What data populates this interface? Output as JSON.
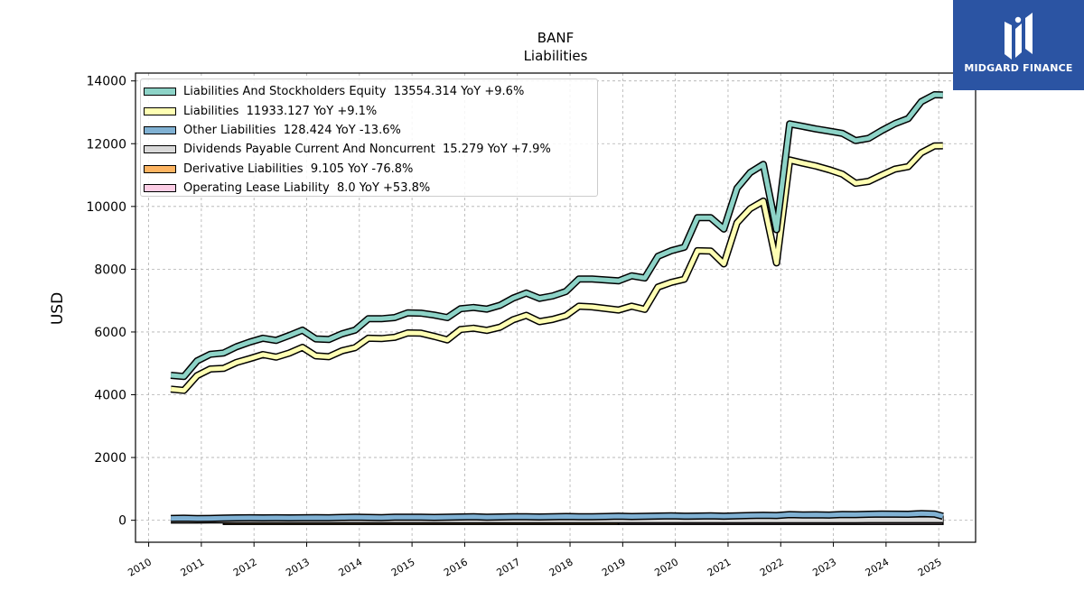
{
  "logo": {
    "text": "MIDGARD FINANCE"
  },
  "chart_data": {
    "type": "line",
    "title": "BANF",
    "subtitle": "Liabilities",
    "ylabel": "USD",
    "xlabel": "",
    "xlim": [
      2009.75,
      2025.7
    ],
    "ylim": [
      -700,
      14250
    ],
    "yticks": [
      0,
      2000,
      4000,
      6000,
      8000,
      10000,
      12000,
      14000
    ],
    "ytick_labels": [
      "0",
      "2000",
      "4000",
      "6000",
      "8000",
      "10000",
      "12000",
      "14000"
    ],
    "xticks": [
      2010,
      2011,
      2012,
      2013,
      2014,
      2015,
      2016,
      2017,
      2018,
      2019,
      2020,
      2021,
      2022,
      2023,
      2024,
      2025
    ],
    "xtick_labels": [
      "2010",
      "2011",
      "2012",
      "2013",
      "2014",
      "2015",
      "2016",
      "2017",
      "2018",
      "2019",
      "2020",
      "2021",
      "2022",
      "2023",
      "2024",
      "2025"
    ],
    "grid": true,
    "legend_position": "top-left",
    "x": [
      2010.42,
      2010.67,
      2010.92,
      2011.17,
      2011.42,
      2011.67,
      2011.92,
      2012.17,
      2012.42,
      2012.67,
      2012.92,
      2013.17,
      2013.42,
      2013.67,
      2013.92,
      2014.17,
      2014.42,
      2014.67,
      2014.92,
      2015.17,
      2015.42,
      2015.67,
      2015.92,
      2016.17,
      2016.42,
      2016.67,
      2016.92,
      2017.17,
      2017.42,
      2017.67,
      2017.92,
      2018.17,
      2018.42,
      2018.67,
      2018.92,
      2019.17,
      2019.42,
      2019.67,
      2019.92,
      2020.17,
      2020.42,
      2020.67,
      2020.92,
      2021.17,
      2021.42,
      2021.67,
      2021.92,
      2022.17,
      2022.42,
      2022.67,
      2022.92,
      2023.17,
      2023.42,
      2023.67,
      2023.92,
      2024.17,
      2024.42,
      2024.67,
      2024.92,
      2025.08
    ],
    "series": [
      {
        "name": "Liabilities And Stockholders Equity",
        "color": "#8dd3c7",
        "legend_value": "13554.314 YoY +9.6%",
        "values": [
          4620,
          4580,
          5080,
          5290,
          5330,
          5530,
          5680,
          5800,
          5730,
          5890,
          6060,
          5780,
          5760,
          5940,
          6060,
          6420,
          6420,
          6460,
          6610,
          6600,
          6540,
          6460,
          6740,
          6780,
          6730,
          6850,
          7080,
          7240,
          7070,
          7150,
          7290,
          7690,
          7690,
          7660,
          7630,
          7790,
          7720,
          8410,
          8590,
          8700,
          9640,
          9640,
          9280,
          10580,
          11080,
          11340,
          9260,
          12630,
          12550,
          12470,
          12400,
          12330,
          12100,
          12170,
          12420,
          12640,
          12800,
          13340,
          13560,
          13554
        ]
      },
      {
        "name": "Liabilities",
        "color": "#ffffb3",
        "legend_value": "11933.127 YoY +9.1%",
        "values": [
          4180,
          4140,
          4610,
          4820,
          4840,
          5030,
          5150,
          5280,
          5200,
          5330,
          5510,
          5240,
          5210,
          5400,
          5500,
          5800,
          5790,
          5830,
          5970,
          5960,
          5860,
          5750,
          6080,
          6120,
          6050,
          6150,
          6390,
          6530,
          6330,
          6400,
          6520,
          6820,
          6800,
          6750,
          6700,
          6820,
          6720,
          7430,
          7580,
          7680,
          8590,
          8580,
          8170,
          9480,
          9930,
          10170,
          8200,
          11480,
          11380,
          11290,
          11170,
          11030,
          10740,
          10800,
          11000,
          11190,
          11270,
          11710,
          11930,
          11933
        ]
      },
      {
        "name": "Other Liabilities",
        "color": "#80b1d3",
        "legend_value": "128.424 YoY -13.6%",
        "values": [
          60,
          65,
          55,
          60,
          70,
          75,
          80,
          75,
          80,
          75,
          80,
          85,
          80,
          90,
          95,
          90,
          85,
          95,
          100,
          95,
          90,
          100,
          105,
          110,
          100,
          105,
          110,
          115,
          105,
          110,
          120,
          115,
          110,
          120,
          130,
          120,
          125,
          135,
          140,
          130,
          135,
          140,
          130,
          140,
          150,
          160,
          150,
          180,
          170,
          175,
          165,
          185,
          180,
          190,
          200,
          195,
          190,
          210,
          200,
          128
        ]
      },
      {
        "name": "Dividends Payable Current And Noncurrent",
        "color": "#d9d9d9",
        "legend_value": "15.279 YoY +7.9%",
        "values": [
          8,
          8,
          8,
          9,
          9,
          9,
          9,
          10,
          10,
          10,
          10,
          10,
          10,
          11,
          11,
          11,
          11,
          11,
          11,
          12,
          12,
          12,
          12,
          12,
          12,
          12,
          12,
          13,
          13,
          13,
          13,
          13,
          13,
          13,
          14,
          14,
          14,
          14,
          14,
          14,
          14,
          14,
          14,
          14,
          14,
          14,
          14,
          14,
          14,
          14,
          14,
          14,
          14,
          15,
          15,
          15,
          15,
          15,
          15,
          15
        ]
      },
      {
        "name": "Derivative Liabilities",
        "color": "#fdb462",
        "legend_value": "9.105 YoY -76.8%",
        "x_range": [
          2011.42,
          2018.92
        ]
      },
      {
        "name": "Operating Lease Liability",
        "color": "#fccde5",
        "legend_value": "8.0 YoY +53.8%",
        "x_range": [
          2018.92,
          2025.08
        ]
      }
    ]
  }
}
